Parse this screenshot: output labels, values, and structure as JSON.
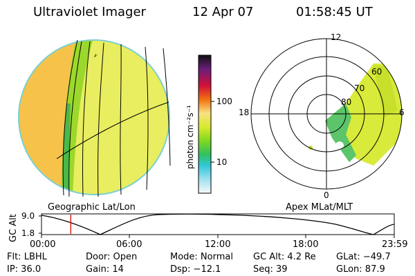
{
  "header": {
    "title": "Ultraviolet Imager",
    "date": "12 Apr 07",
    "time": "01:58:45 UT"
  },
  "colorbar": {
    "unit_label": "photon cm⁻²s⁻¹",
    "ticks": [
      "100",
      "10"
    ]
  },
  "polar": {
    "mlt_labels": [
      "12",
      "18",
      "6",
      "0"
    ],
    "lat_labels": [
      "60",
      "70",
      "80"
    ]
  },
  "panels": {
    "left_label": "Geographic Lat/Lon",
    "right_label": "Apex MLat/MLT"
  },
  "altitude_plot": {
    "ylabel": "GC Alt",
    "ytick_top": "9.0",
    "ytick_bottom": "1.8",
    "xticks": [
      "00:00",
      "06:00",
      "12:00",
      "18:00",
      "23:59"
    ],
    "current_time_fraction": 0.083,
    "marker_color": "#e00000"
  },
  "info": {
    "flt": "Flt: LBHL",
    "ip": "IP: 36.0",
    "door": "Door: Open",
    "gain": "Gain: 14",
    "mode": "Mode: Normal",
    "dsp": "Dsp:  −12.1",
    "gcalt": "GC Alt: 4.2 Re",
    "seq": "Seq: 39",
    "glat": "GLat: −49.7",
    "glon": "GLon:  87.9"
  }
}
